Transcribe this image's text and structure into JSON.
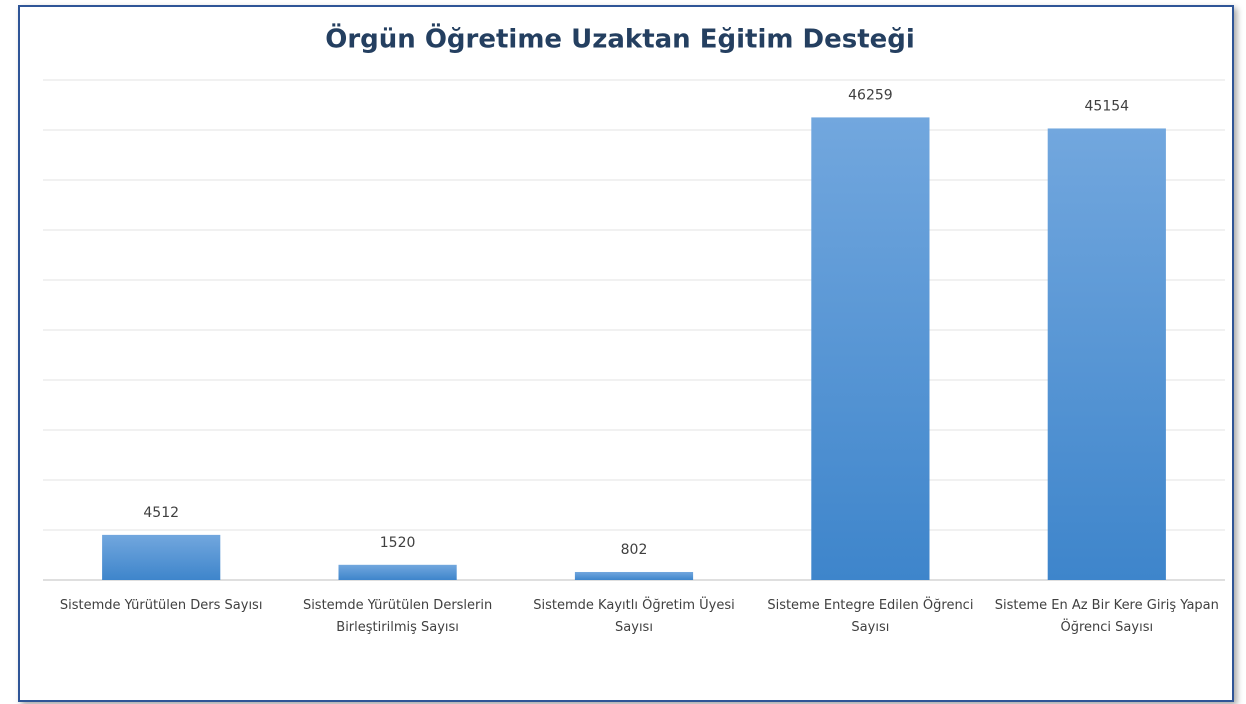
{
  "chart_data": {
    "type": "bar",
    "title": "Örgün Öğretime Uzaktan Eğitim Desteği",
    "categories": [
      "Sistemde Yürütülen Ders Sayısı",
      "Sistemde Yürütülen Derslerin Birleştirilmiş Sayısı",
      "Sistemde Kayıtlı Öğretim Üyesi Sayısı",
      "Sisteme Entegre Edilen Öğrenci Sayısı",
      "Sisteme En Az Bir Kere Giriş Yapan Öğrenci Sayısı"
    ],
    "values": [
      4512,
      1520,
      802,
      46259,
      45154
    ],
    "color": "#4a8fd4",
    "ylim": [
      0,
      50000
    ],
    "yticks": [
      0,
      5000,
      10000,
      15000,
      20000,
      25000,
      30000,
      35000,
      40000,
      45000,
      50000
    ],
    "grid": true
  }
}
